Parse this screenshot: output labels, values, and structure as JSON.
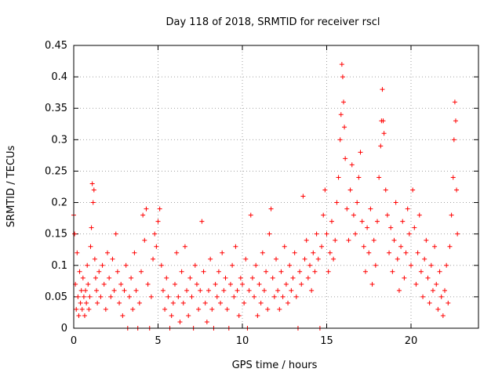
{
  "chart_data": {
    "type": "scatter",
    "title": "Day 118 of 2018, SRMTID for receiver rscl",
    "xlabel": "GPS time / hours",
    "ylabel": "SRMTID / TECUs",
    "xlim": [
      0,
      24
    ],
    "ylim": [
      0,
      0.45
    ],
    "xticks": [
      0,
      5,
      10,
      15,
      20
    ],
    "xtick_labels": [
      "0",
      "5",
      "10",
      "15",
      "20"
    ],
    "yticks": [
      0,
      0.05,
      0.1,
      0.15,
      0.2,
      0.25,
      0.3,
      0.35,
      0.4,
      0.45
    ],
    "ytick_labels": [
      "0",
      "0.05",
      "0.1",
      "0.15",
      "0.2",
      "0.25",
      "0.3",
      "0.35",
      "0.4",
      "0.45"
    ],
    "grid": true,
    "marker": "+",
    "color": "#ff0000",
    "series": [
      {
        "name": "SRMTID",
        "points": [
          [
            0.0,
            0.18
          ],
          [
            0.05,
            0.15
          ],
          [
            0.1,
            0.07
          ],
          [
            0.15,
            0.03
          ],
          [
            0.2,
            0.12
          ],
          [
            0.25,
            0.05
          ],
          [
            0.3,
            0.02
          ],
          [
            0.35,
            0.09
          ],
          [
            0.4,
            0.04
          ],
          [
            0.45,
            0.06
          ],
          [
            0.5,
            0.03
          ],
          [
            0.55,
            0.08
          ],
          [
            0.6,
            0.05
          ],
          [
            0.65,
            0.02
          ],
          [
            0.7,
            0.06
          ],
          [
            0.75,
            0.04
          ],
          [
            0.8,
            0.1
          ],
          [
            0.85,
            0.07
          ],
          [
            0.9,
            0.03
          ],
          [
            0.95,
            0.05
          ],
          [
            1.0,
            0.13
          ],
          [
            1.05,
            0.16
          ],
          [
            1.1,
            0.23
          ],
          [
            1.15,
            0.2
          ],
          [
            1.2,
            0.22
          ],
          [
            1.25,
            0.11
          ],
          [
            1.3,
            0.08
          ],
          [
            1.35,
            0.06
          ],
          [
            1.4,
            0.04
          ],
          [
            1.5,
            0.09
          ],
          [
            1.6,
            0.05
          ],
          [
            1.7,
            0.1
          ],
          [
            1.8,
            0.07
          ],
          [
            1.9,
            0.03
          ],
          [
            2.0,
            0.12
          ],
          [
            2.1,
            0.08
          ],
          [
            2.2,
            0.05
          ],
          [
            2.3,
            0.11
          ],
          [
            2.4,
            0.06
          ],
          [
            2.5,
            0.15
          ],
          [
            2.6,
            0.09
          ],
          [
            2.7,
            0.04
          ],
          [
            2.8,
            0.07
          ],
          [
            2.9,
            0.02
          ],
          [
            3.0,
            0.06
          ],
          [
            3.1,
            0.1
          ],
          [
            3.2,
            0.0
          ],
          [
            3.3,
            0.05
          ],
          [
            3.4,
            0.08
          ],
          [
            3.5,
            0.03
          ],
          [
            3.6,
            0.12
          ],
          [
            3.7,
            0.06
          ],
          [
            3.8,
            0.0
          ],
          [
            3.9,
            0.04
          ],
          [
            4.0,
            0.09
          ],
          [
            4.1,
            0.18
          ],
          [
            4.2,
            0.14
          ],
          [
            4.3,
            0.19
          ],
          [
            4.4,
            0.07
          ],
          [
            4.5,
            0.0
          ],
          [
            4.6,
            0.05
          ],
          [
            4.7,
            0.11
          ],
          [
            4.8,
            0.15
          ],
          [
            4.9,
            0.13
          ],
          [
            5.0,
            0.17
          ],
          [
            5.1,
            0.19
          ],
          [
            5.2,
            0.1
          ],
          [
            5.3,
            0.06
          ],
          [
            5.4,
            0.03
          ],
          [
            5.5,
            0.08
          ],
          [
            5.6,
            0.05
          ],
          [
            5.7,
            0.0
          ],
          [
            5.8,
            0.02
          ],
          [
            5.9,
            0.04
          ],
          [
            6.0,
            0.07
          ],
          [
            6.1,
            0.12
          ],
          [
            6.2,
            0.05
          ],
          [
            6.3,
            0.01
          ],
          [
            6.4,
            0.09
          ],
          [
            6.5,
            0.04
          ],
          [
            6.6,
            0.13
          ],
          [
            6.7,
            0.06
          ],
          [
            6.8,
            0.02
          ],
          [
            6.9,
            0.08
          ],
          [
            7.0,
            0.05
          ],
          [
            7.1,
            0.0
          ],
          [
            7.2,
            0.1
          ],
          [
            7.3,
            0.07
          ],
          [
            7.4,
            0.03
          ],
          [
            7.5,
            0.06
          ],
          [
            7.6,
            0.17
          ],
          [
            7.7,
            0.09
          ],
          [
            7.8,
            0.04
          ],
          [
            7.9,
            0.01
          ],
          [
            8.0,
            0.06
          ],
          [
            8.1,
            0.11
          ],
          [
            8.2,
            0.03
          ],
          [
            8.3,
            0.0
          ],
          [
            8.4,
            0.07
          ],
          [
            8.5,
            0.05
          ],
          [
            8.6,
            0.09
          ],
          [
            8.7,
            0.04
          ],
          [
            8.8,
            0.12
          ],
          [
            8.9,
            0.06
          ],
          [
            9.0,
            0.08
          ],
          [
            9.1,
            0.03
          ],
          [
            9.2,
            0.0
          ],
          [
            9.3,
            0.07
          ],
          [
            9.4,
            0.1
          ],
          [
            9.5,
            0.05
          ],
          [
            9.6,
            0.13
          ],
          [
            9.7,
            0.06
          ],
          [
            9.8,
            0.02
          ],
          [
            9.9,
            0.08
          ],
          [
            10.0,
            0.07
          ],
          [
            10.1,
            0.04
          ],
          [
            10.2,
            0.11
          ],
          [
            10.3,
            0.0
          ],
          [
            10.4,
            0.06
          ],
          [
            10.5,
            0.18
          ],
          [
            10.6,
            0.08
          ],
          [
            10.7,
            0.05
          ],
          [
            10.8,
            0.1
          ],
          [
            10.9,
            0.02
          ],
          [
            11.0,
            0.07
          ],
          [
            11.1,
            0.04
          ],
          [
            11.2,
            0.12
          ],
          [
            11.3,
            0.06
          ],
          [
            11.4,
            0.09
          ],
          [
            11.5,
            0.03
          ],
          [
            11.6,
            0.15
          ],
          [
            11.7,
            0.19
          ],
          [
            11.8,
            0.08
          ],
          [
            11.9,
            0.05
          ],
          [
            12.0,
            0.11
          ],
          [
            12.1,
            0.06
          ],
          [
            12.2,
            0.03
          ],
          [
            12.3,
            0.09
          ],
          [
            12.4,
            0.05
          ],
          [
            12.5,
            0.13
          ],
          [
            12.6,
            0.07
          ],
          [
            12.7,
            0.04
          ],
          [
            12.8,
            0.1
          ],
          [
            12.9,
            0.06
          ],
          [
            13.0,
            0.08
          ],
          [
            13.1,
            0.12
          ],
          [
            13.2,
            0.05
          ],
          [
            13.3,
            0.0
          ],
          [
            13.4,
            0.09
          ],
          [
            13.5,
            0.07
          ],
          [
            13.6,
            0.21
          ],
          [
            13.7,
            0.11
          ],
          [
            13.8,
            0.14
          ],
          [
            13.9,
            0.08
          ],
          [
            14.0,
            0.1
          ],
          [
            14.1,
            0.06
          ],
          [
            14.2,
            0.12
          ],
          [
            14.3,
            0.09
          ],
          [
            14.4,
            0.15
          ],
          [
            14.5,
            0.11
          ],
          [
            14.6,
            0.0
          ],
          [
            14.7,
            0.13
          ],
          [
            14.8,
            0.18
          ],
          [
            14.9,
            0.22
          ],
          [
            15.0,
            0.15
          ],
          [
            15.1,
            0.09
          ],
          [
            15.2,
            0.12
          ],
          [
            15.3,
            0.17
          ],
          [
            15.4,
            0.11
          ],
          [
            15.5,
            0.14
          ],
          [
            15.6,
            0.2
          ],
          [
            15.7,
            0.24
          ],
          [
            15.8,
            0.3
          ],
          [
            15.85,
            0.34
          ],
          [
            15.9,
            0.42
          ],
          [
            15.95,
            0.4
          ],
          [
            16.0,
            0.36
          ],
          [
            16.05,
            0.32
          ],
          [
            16.1,
            0.27
          ],
          [
            16.2,
            0.19
          ],
          [
            16.3,
            0.14
          ],
          [
            16.4,
            0.22
          ],
          [
            16.5,
            0.26
          ],
          [
            16.6,
            0.18
          ],
          [
            16.7,
            0.15
          ],
          [
            16.8,
            0.2
          ],
          [
            16.9,
            0.24
          ],
          [
            17.0,
            0.28
          ],
          [
            17.1,
            0.17
          ],
          [
            17.2,
            0.13
          ],
          [
            17.3,
            0.09
          ],
          [
            17.4,
            0.16
          ],
          [
            17.5,
            0.12
          ],
          [
            17.6,
            0.19
          ],
          [
            17.7,
            0.07
          ],
          [
            17.8,
            0.14
          ],
          [
            17.9,
            0.1
          ],
          [
            18.0,
            0.17
          ],
          [
            18.1,
            0.24
          ],
          [
            18.2,
            0.29
          ],
          [
            18.25,
            0.33
          ],
          [
            18.3,
            0.38
          ],
          [
            18.35,
            0.33
          ],
          [
            18.4,
            0.31
          ],
          [
            18.5,
            0.22
          ],
          [
            18.6,
            0.18
          ],
          [
            18.7,
            0.12
          ],
          [
            18.8,
            0.16
          ],
          [
            18.9,
            0.09
          ],
          [
            19.0,
            0.14
          ],
          [
            19.1,
            0.2
          ],
          [
            19.2,
            0.11
          ],
          [
            19.3,
            0.06
          ],
          [
            19.4,
            0.13
          ],
          [
            19.5,
            0.17
          ],
          [
            19.6,
            0.08
          ],
          [
            19.7,
            0.12
          ],
          [
            19.8,
            0.19
          ],
          [
            19.9,
            0.15
          ],
          [
            20.0,
            0.1
          ],
          [
            20.1,
            0.22
          ],
          [
            20.2,
            0.16
          ],
          [
            20.3,
            0.07
          ],
          [
            20.4,
            0.12
          ],
          [
            20.5,
            0.18
          ],
          [
            20.6,
            0.09
          ],
          [
            20.7,
            0.05
          ],
          [
            20.8,
            0.11
          ],
          [
            20.9,
            0.14
          ],
          [
            21.0,
            0.08
          ],
          [
            21.1,
            0.04
          ],
          [
            21.2,
            0.1
          ],
          [
            21.3,
            0.06
          ],
          [
            21.4,
            0.13
          ],
          [
            21.5,
            0.07
          ],
          [
            21.6,
            0.03
          ],
          [
            21.7,
            0.09
          ],
          [
            21.8,
            0.05
          ],
          [
            21.9,
            0.02
          ],
          [
            22.0,
            0.06
          ],
          [
            22.1,
            0.1
          ],
          [
            22.2,
            0.04
          ],
          [
            22.3,
            0.13
          ],
          [
            22.4,
            0.18
          ],
          [
            22.5,
            0.24
          ],
          [
            22.55,
            0.3
          ],
          [
            22.6,
            0.36
          ],
          [
            22.65,
            0.33
          ],
          [
            22.7,
            0.22
          ],
          [
            22.75,
            0.15
          ]
        ]
      }
    ]
  }
}
